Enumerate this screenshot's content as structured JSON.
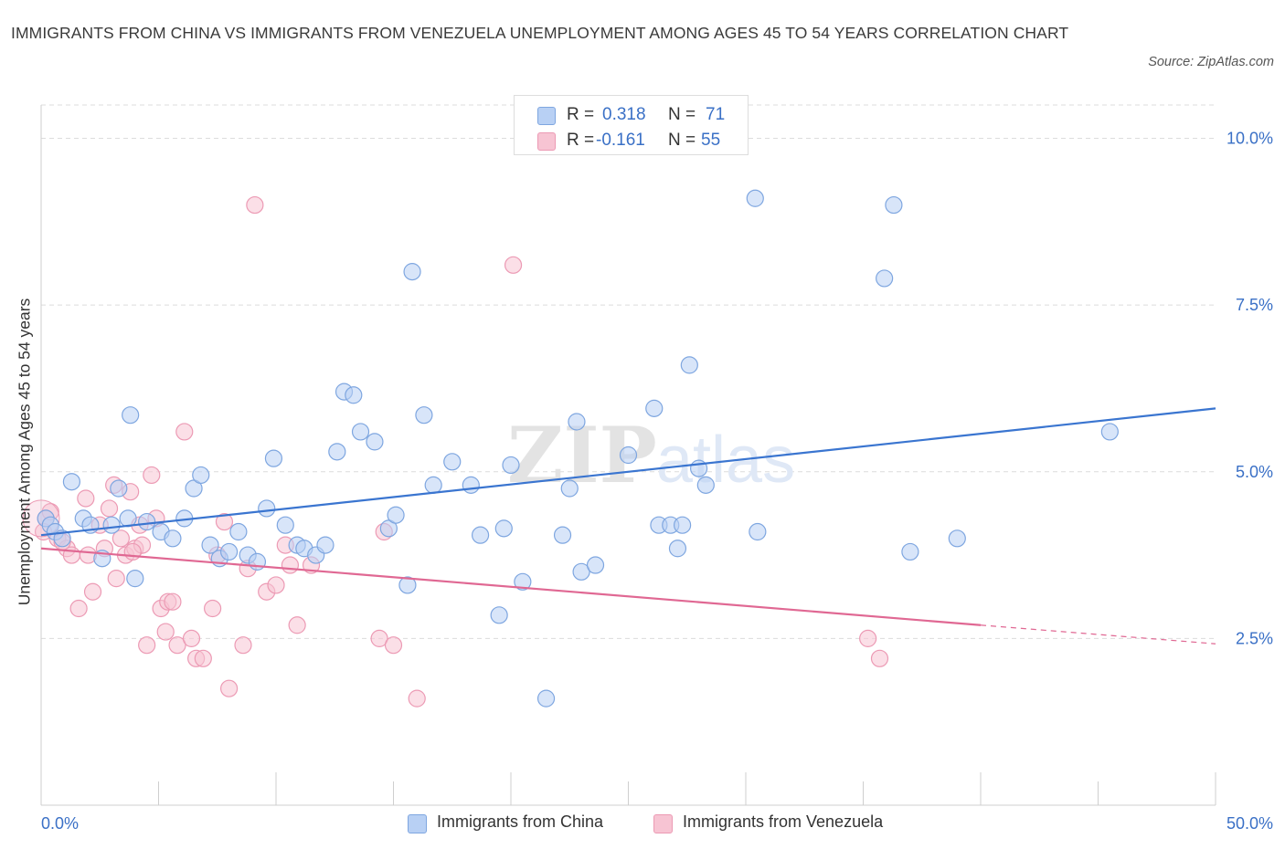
{
  "header": {
    "title": "IMMIGRANTS FROM CHINA VS IMMIGRANTS FROM VENEZUELA UNEMPLOYMENT AMONG AGES 45 TO 54 YEARS CORRELATION CHART",
    "source": "Source: ZipAtlas.com"
  },
  "legend_top": {
    "china": {
      "r_label": "R =",
      "r_value": "0.318",
      "n_label": "N =",
      "n_value": "71"
    },
    "venezuela": {
      "r_label": "R =",
      "r_value": "-0.161",
      "n_label": "N =",
      "n_value": "55"
    }
  },
  "colors": {
    "china_fill": "#b8d0f4",
    "china_stroke": "#7ea6e0",
    "china_line": "#3a75d0",
    "venezuela_fill": "#f7c4d3",
    "venezuela_stroke": "#ec9ab4",
    "venezuela_line": "#e06893",
    "grid": "#dcdcdc",
    "tick_label": "#3a70c6"
  },
  "chart_data": {
    "type": "scatter",
    "title": "IMMIGRANTS FROM CHINA VS IMMIGRANTS FROM VENEZUELA UNEMPLOYMENT AMONG AGES 45 TO 54 YEARS CORRELATION CHART",
    "xlabel": "",
    "ylabel": "Unemployment Among Ages 45 to 54 years",
    "xlim": [
      0,
      50
    ],
    "ylim": [
      0,
      10.5
    ],
    "x_tick_labels": [
      "0.0%",
      "50.0%"
    ],
    "y_ticks": [
      2.5,
      5.0,
      7.5,
      10.0
    ],
    "y_tick_labels": [
      "2.5%",
      "5.0%",
      "7.5%",
      "10.0%"
    ],
    "grid": true,
    "legend_position": "top-center and bottom",
    "watermark": "ZIPatlas",
    "series": [
      {
        "name": "Immigrants from China",
        "r": 0.318,
        "n": 71,
        "trend": {
          "x": [
            0,
            50
          ],
          "y": [
            4.05,
            5.95
          ]
        },
        "points": [
          [
            0.2,
            4.3
          ],
          [
            0.4,
            4.2
          ],
          [
            0.6,
            4.1
          ],
          [
            0.9,
            4.0
          ],
          [
            1.3,
            4.85
          ],
          [
            1.8,
            4.3
          ],
          [
            2.1,
            4.2
          ],
          [
            2.6,
            3.7
          ],
          [
            3.0,
            4.2
          ],
          [
            3.3,
            4.75
          ],
          [
            3.8,
            5.85
          ],
          [
            4.0,
            3.4
          ],
          [
            4.5,
            4.25
          ],
          [
            3.7,
            4.3
          ],
          [
            5.1,
            4.1
          ],
          [
            5.6,
            4.0
          ],
          [
            6.1,
            4.3
          ],
          [
            6.5,
            4.75
          ],
          [
            6.8,
            4.95
          ],
          [
            7.2,
            3.9
          ],
          [
            7.6,
            3.7
          ],
          [
            8.0,
            3.8
          ],
          [
            8.4,
            4.1
          ],
          [
            8.8,
            3.75
          ],
          [
            9.2,
            3.65
          ],
          [
            9.6,
            4.45
          ],
          [
            9.9,
            5.2
          ],
          [
            10.4,
            4.2
          ],
          [
            10.9,
            3.9
          ],
          [
            11.2,
            3.85
          ],
          [
            11.7,
            3.75
          ],
          [
            12.1,
            3.9
          ],
          [
            12.6,
            5.3
          ],
          [
            12.9,
            6.2
          ],
          [
            13.3,
            6.15
          ],
          [
            13.6,
            5.6
          ],
          [
            14.2,
            5.45
          ],
          [
            14.8,
            4.15
          ],
          [
            15.1,
            4.35
          ],
          [
            15.6,
            3.3
          ],
          [
            15.8,
            8.0
          ],
          [
            16.3,
            5.85
          ],
          [
            16.7,
            4.8
          ],
          [
            17.5,
            5.15
          ],
          [
            18.3,
            4.8
          ],
          [
            18.7,
            4.05
          ],
          [
            19.5,
            2.85
          ],
          [
            19.7,
            4.15
          ],
          [
            20.0,
            5.1
          ],
          [
            20.5,
            3.35
          ],
          [
            21.5,
            1.6
          ],
          [
            22.2,
            4.05
          ],
          [
            22.5,
            4.75
          ],
          [
            22.8,
            5.75
          ],
          [
            23.0,
            3.5
          ],
          [
            23.6,
            3.6
          ],
          [
            25.0,
            5.25
          ],
          [
            26.1,
            5.95
          ],
          [
            26.3,
            4.2
          ],
          [
            26.8,
            4.2
          ],
          [
            27.1,
            3.85
          ],
          [
            27.6,
            6.6
          ],
          [
            28.0,
            5.05
          ],
          [
            28.3,
            4.8
          ],
          [
            27.3,
            4.2
          ],
          [
            30.4,
            9.1
          ],
          [
            30.5,
            4.1
          ],
          [
            35.9,
            7.9
          ],
          [
            36.3,
            9.0
          ],
          [
            37.0,
            3.8
          ],
          [
            39.0,
            4.0
          ],
          [
            45.5,
            5.6
          ]
        ]
      },
      {
        "name": "Immigrants from Venezuela",
        "r": -0.161,
        "n": 55,
        "trend": {
          "x": [
            0,
            40
          ],
          "y": [
            3.85,
            2.7
          ]
        },
        "trend_dashed": {
          "x": [
            40,
            50
          ],
          "y": [
            2.7,
            2.42
          ]
        },
        "points": [
          [
            0.2,
            4.3
          ],
          [
            0.4,
            4.4
          ],
          [
            0.7,
            4.0
          ],
          [
            1.1,
            3.85
          ],
          [
            1.3,
            3.75
          ],
          [
            1.6,
            2.95
          ],
          [
            1.9,
            4.6
          ],
          [
            2.0,
            3.75
          ],
          [
            2.2,
            3.2
          ],
          [
            2.5,
            4.2
          ],
          [
            2.7,
            3.85
          ],
          [
            2.9,
            4.45
          ],
          [
            3.1,
            4.8
          ],
          [
            3.2,
            3.4
          ],
          [
            3.4,
            4.0
          ],
          [
            3.6,
            3.75
          ],
          [
            3.8,
            4.7
          ],
          [
            4.0,
            3.85
          ],
          [
            4.2,
            4.2
          ],
          [
            4.3,
            3.9
          ],
          [
            4.5,
            2.4
          ],
          [
            4.7,
            4.95
          ],
          [
            4.9,
            4.3
          ],
          [
            5.1,
            2.95
          ],
          [
            5.3,
            2.6
          ],
          [
            5.4,
            3.05
          ],
          [
            5.6,
            3.05
          ],
          [
            5.8,
            2.4
          ],
          [
            6.1,
            5.6
          ],
          [
            6.4,
            2.5
          ],
          [
            6.6,
            2.2
          ],
          [
            6.9,
            2.2
          ],
          [
            7.3,
            2.95
          ],
          [
            7.5,
            3.75
          ],
          [
            7.8,
            4.25
          ],
          [
            8.0,
            1.75
          ],
          [
            8.6,
            2.4
          ],
          [
            8.8,
            3.55
          ],
          [
            9.1,
            9.0
          ],
          [
            9.6,
            3.2
          ],
          [
            10.0,
            3.3
          ],
          [
            10.4,
            3.9
          ],
          [
            10.6,
            3.6
          ],
          [
            10.9,
            2.7
          ],
          [
            11.5,
            3.6
          ],
          [
            14.4,
            2.5
          ],
          [
            14.6,
            4.1
          ],
          [
            15.0,
            2.4
          ],
          [
            16.0,
            1.6
          ],
          [
            20.1,
            8.1
          ],
          [
            35.2,
            2.5
          ],
          [
            35.7,
            2.2
          ],
          [
            0.1,
            4.1
          ],
          [
            0.9,
            3.95
          ],
          [
            3.9,
            3.8
          ]
        ]
      }
    ]
  },
  "legend_bottom": {
    "china_label": "Immigrants from China",
    "venezuela_label": "Immigrants from Venezuela"
  }
}
